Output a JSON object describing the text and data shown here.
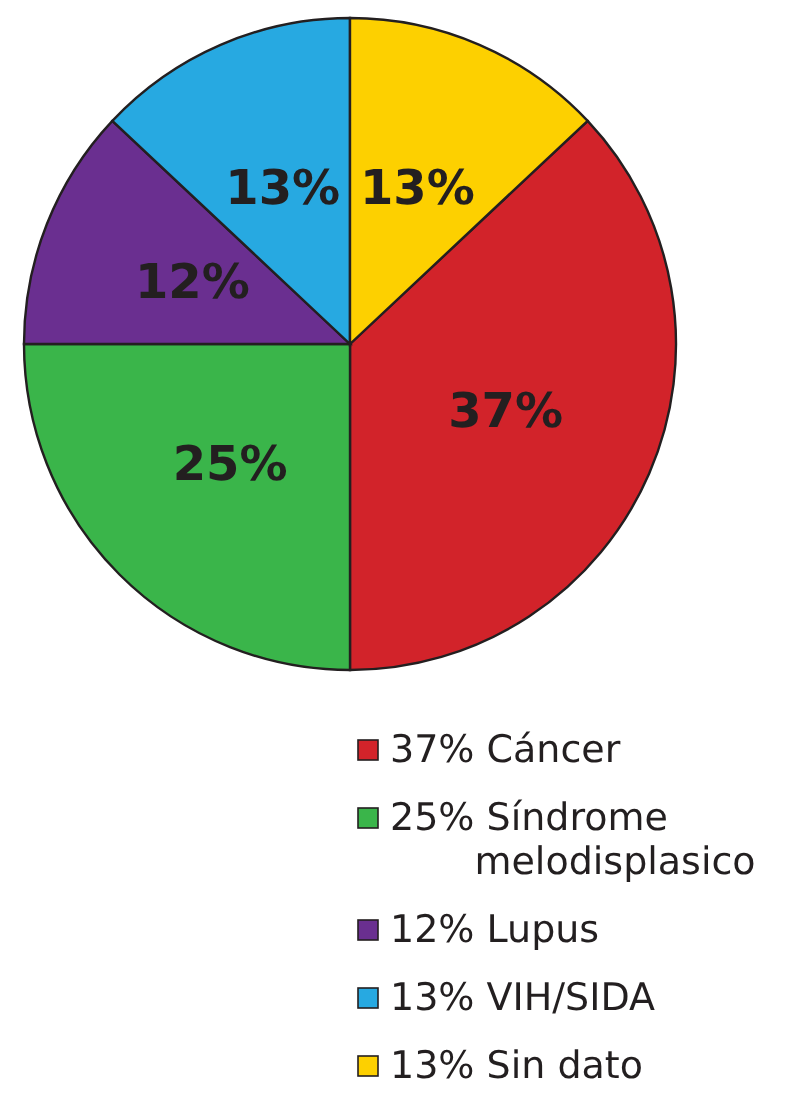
{
  "chart_data": {
    "type": "pie",
    "categories": [
      "Cáncer",
      "Síndrome melodisplasico",
      "Lupus",
      "VIH/SIDA",
      "Sin dato"
    ],
    "values": [
      37,
      25,
      12,
      13,
      13
    ],
    "value_labels": [
      "37%",
      "25%",
      "12%",
      "13%",
      "13%"
    ],
    "colors": [
      "#d2232a",
      "#3ab54a",
      "#6a2f90",
      "#27a9e1",
      "#fdd000"
    ],
    "legend": "bottom"
  }
}
